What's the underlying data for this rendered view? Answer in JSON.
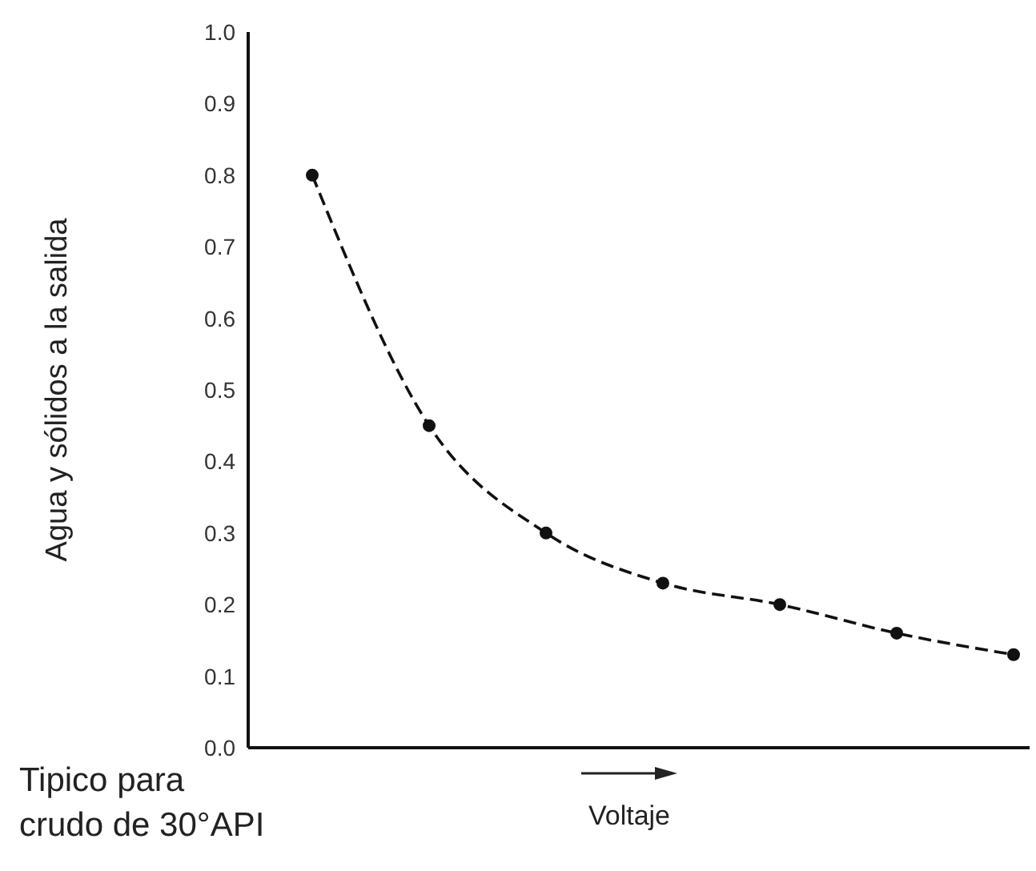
{
  "chart_data": {
    "type": "line",
    "xlabel": "Voltaje",
    "ylabel": "Agua y sólidos a la salida",
    "annotations": [
      "Tipico para\ncrudo de 30°API"
    ],
    "categories": [
      null,
      null,
      null,
      null,
      null,
      null,
      null
    ],
    "values": [
      0.8,
      0.45,
      0.3,
      0.23,
      0.2,
      0.16,
      0.13
    ],
    "color": "#111111",
    "ylim": [
      0,
      1
    ],
    "yticks": [
      {
        "value": 0,
        "label": "0.0"
      },
      0.1,
      0.2,
      0.3,
      0.4,
      0.5,
      0.6,
      0.7,
      0.8,
      0.9,
      {
        "value": 1,
        "label": "1.0"
      }
    ],
    "tick_labels": "y",
    "grid": false,
    "marker": "circle",
    "line_style": "dashed"
  }
}
